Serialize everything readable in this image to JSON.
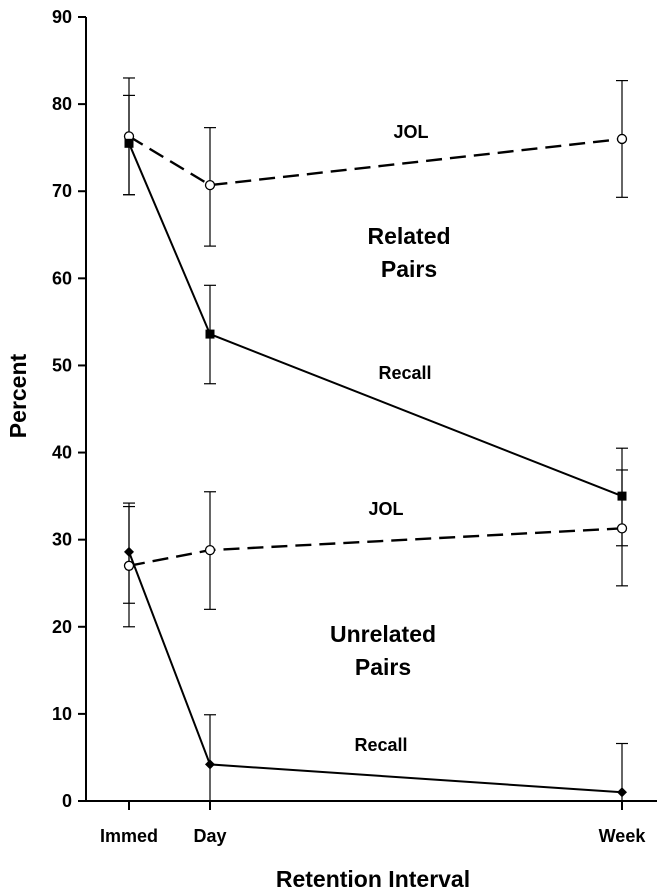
{
  "chart_data": {
    "type": "line",
    "xlabel": "Retention Interval",
    "ylabel": "Percent",
    "ylim": [
      0,
      90
    ],
    "yticks": [
      0,
      10,
      20,
      30,
      40,
      50,
      60,
      70,
      80,
      90
    ],
    "categories": [
      "Immed",
      "Day",
      "Week"
    ],
    "grid": false,
    "series": [
      {
        "key": "related_jol",
        "values": [
          76.3,
          70.7,
          76.0
        ],
        "err_low": [
          69.6,
          63.7,
          69.3
        ],
        "err_high": [
          83.0,
          77.3,
          82.7
        ],
        "style": "dashed",
        "marker": "open-circle"
      },
      {
        "key": "related_recall",
        "values": [
          75.5,
          53.6,
          35.0
        ],
        "err_low": [
          69.6,
          47.9,
          29.3
        ],
        "err_high": [
          81.0,
          59.2,
          40.5
        ],
        "style": "solid",
        "marker": "filled-square"
      },
      {
        "key": "unrelated_jol",
        "values": [
          27.0,
          28.8,
          31.3
        ],
        "err_low": [
          20.0,
          22.0,
          24.7
        ],
        "err_high": [
          33.8,
          35.5,
          38.0
        ],
        "style": "dashed",
        "marker": "open-circle"
      },
      {
        "key": "unrelated_recall",
        "values": [
          28.6,
          4.2,
          1.0
        ],
        "err_low": [
          22.7,
          0.0,
          0.0
        ],
        "err_high": [
          34.2,
          9.9,
          6.6
        ],
        "style": "solid",
        "marker": "filled-diamond"
      }
    ],
    "annotations": {
      "related_jol": "JOL",
      "related_group_line1": "Related",
      "related_group_line2": "Pairs",
      "related_recall": "Recall",
      "unrelated_jol": "JOL",
      "unrelated_group_line1": "Unrelated",
      "unrelated_group_line2": "Pairs",
      "unrelated_recall": "Recall"
    }
  }
}
